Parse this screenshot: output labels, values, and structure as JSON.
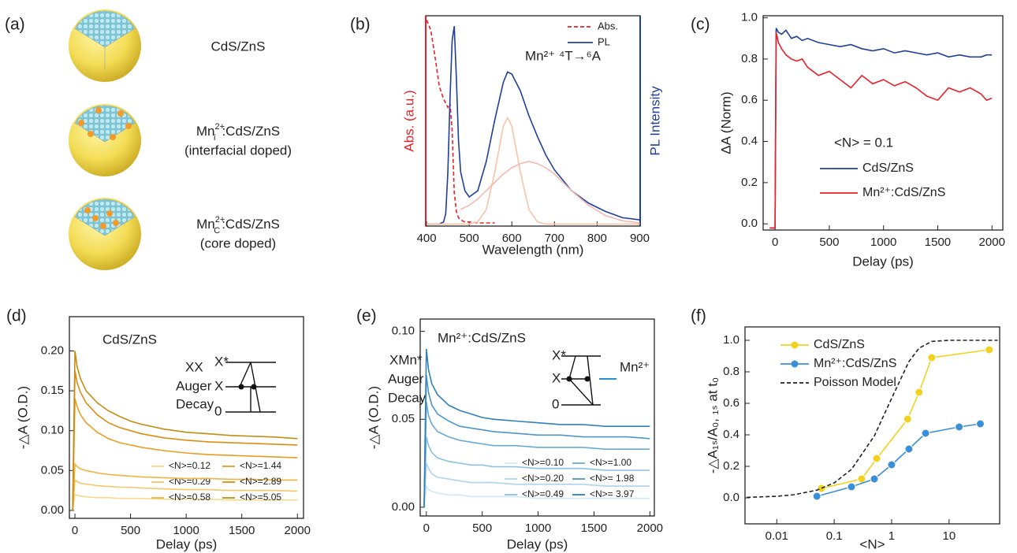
{
  "panel_a": {
    "label": "(a)",
    "items": [
      {
        "text": "CdS/ZnS"
      },
      {
        "base": "Mn",
        "sup": "2+",
        "sub": "i",
        "rest": ":CdS/ZnS",
        "note": "(interfacial doped)"
      },
      {
        "base": "Mn",
        "sup": "2+",
        "sub": "C",
        "rest": ":CdS/ZnS",
        "note": "(core doped)"
      }
    ]
  },
  "chart_data": [
    {
      "type": "line",
      "label": "(b)",
      "xlabel": "Wavelength (nm)",
      "ylabel": "Abs. (a.u.)",
      "ylabel_color": "#e8202a",
      "y2label": "PL Intensity",
      "y2label_color": "#1f3f9a",
      "annotations": [
        "Mn²⁺ ⁴T→⁶A"
      ],
      "xlim": [
        398,
        901
      ],
      "xticks": [
        400,
        500,
        600,
        700,
        800,
        900
      ],
      "ylim": [
        -0.01,
        1.0
      ],
      "y2lim": [
        -0.01,
        1.0
      ],
      "x": [
        400,
        410,
        420,
        430,
        440,
        445,
        450,
        455,
        460,
        465,
        470,
        475,
        480,
        490,
        500,
        520,
        540,
        560,
        580,
        590,
        600,
        620,
        640,
        660,
        680,
        700,
        740,
        780,
        820,
        860,
        900
      ],
      "series": [
        {
          "name": "Abs.",
          "color": "#e8202a",
          "linestyle": "dashed",
          "values": [
            0.98,
            0.93,
            0.8,
            0.66,
            0.6,
            0.58,
            0.56,
            0.58,
            0.45,
            0.15,
            0.06,
            0.03,
            0.02,
            0.01,
            0.01,
            0.005,
            0.005,
            0.005,
            null,
            null,
            null,
            null,
            null,
            null,
            null,
            null,
            null,
            null,
            null,
            null,
            null
          ]
        },
        {
          "name": "PL",
          "color": "#1f3f9a",
          "axis": "y2",
          "values": [
            0,
            0,
            0,
            0,
            0.01,
            0.05,
            0.25,
            0.6,
            0.88,
            0.95,
            0.7,
            0.4,
            0.25,
            0.16,
            0.13,
            0.16,
            0.3,
            0.5,
            0.68,
            0.73,
            0.72,
            0.64,
            0.52,
            0.42,
            0.33,
            0.26,
            0.16,
            0.1,
            0.06,
            0.03,
            0.02
          ]
        },
        {
          "color": "#f7c4a6",
          "axis": "y2",
          "values": [
            0,
            0,
            0,
            0,
            0,
            0,
            0,
            0,
            0,
            0,
            0,
            0,
            0,
            0,
            0,
            0.01,
            0.07,
            0.25,
            0.47,
            0.51,
            0.47,
            0.25,
            0.07,
            0.01,
            0,
            0,
            0,
            0,
            0,
            0,
            0
          ]
        },
        {
          "color": "#f4b8b0",
          "axis": "y2",
          "values": [
            null,
            null,
            null,
            null,
            null,
            null,
            null,
            null,
            null,
            null,
            null,
            null,
            0.07,
            0.08,
            0.09,
            0.12,
            0.16,
            0.2,
            0.24,
            0.255,
            0.27,
            0.29,
            0.3,
            0.29,
            0.27,
            0.24,
            0.16,
            0.09,
            0.04,
            0.015,
            0.005
          ]
        }
      ]
    },
    {
      "type": "line",
      "label": "(c)",
      "xlabel": "Delay (ps)",
      "ylabel": "ΔA (Norm)",
      "annotations": [
        "<N> = 0.1"
      ],
      "xlim": [
        -110,
        2100
      ],
      "xticks": [
        0,
        500,
        1000,
        1500,
        2000
      ],
      "ylim": [
        -0.03,
        1.01
      ],
      "yticks": [
        {
          "value": 0,
          "label": "0.0"
        },
        0.2,
        0.4,
        0.6,
        0.8,
        {
          "value": 1,
          "label": "1.0"
        }
      ],
      "x": [
        -50,
        0,
        10,
        30,
        60,
        100,
        150,
        200,
        250,
        300,
        400,
        500,
        600,
        700,
        800,
        900,
        1000,
        1100,
        1200,
        1300,
        1400,
        1500,
        1600,
        1700,
        1800,
        1900,
        1950,
        2000
      ],
      "series": [
        {
          "name": "CdS/ZnS",
          "color": "#1f3f9a",
          "values": [
            -0.02,
            -0.02,
            0.95,
            0.93,
            0.92,
            0.94,
            0.9,
            0.91,
            0.89,
            0.9,
            0.88,
            0.87,
            0.86,
            0.87,
            0.85,
            0.84,
            0.85,
            0.83,
            0.84,
            0.83,
            0.82,
            0.83,
            0.81,
            0.82,
            0.81,
            0.81,
            0.82,
            0.82
          ]
        },
        {
          "name": "Mn²⁺:CdS/ZnS",
          "color": "#e8202a",
          "values": [
            -0.02,
            -0.02,
            0.93,
            0.88,
            0.85,
            0.82,
            0.8,
            0.79,
            0.8,
            0.76,
            0.72,
            0.74,
            0.7,
            0.66,
            0.72,
            0.68,
            0.7,
            0.67,
            0.69,
            0.66,
            0.62,
            0.6,
            0.66,
            0.64,
            0.66,
            0.63,
            0.6,
            0.61
          ]
        }
      ]
    },
    {
      "type": "line",
      "label": "(d)",
      "title": "CdS/ZnS",
      "xlabel": "Delay (ps)",
      "ylabel": "-△A (O.D.)",
      "inset_labels": [
        "XX",
        "Auger",
        "Decay",
        "X*",
        "X",
        "0"
      ],
      "xlim": [
        -50,
        2055
      ],
      "xticks": [
        0,
        500,
        1000,
        1500,
        2000
      ],
      "ylim": [
        -0.01,
        0.243
      ],
      "yticks": [
        {
          "value": 0,
          "label": "0.00"
        },
        0.05,
        {
          "value": 0.1,
          "label": "0.10"
        },
        0.15,
        {
          "value": 0.2,
          "label": "0.20"
        }
      ],
      "x": [
        -20,
        0,
        20,
        50,
        100,
        200,
        300,
        400,
        500,
        600,
        800,
        1000,
        1200,
        1400,
        1600,
        1800,
        2000
      ],
      "series": [
        {
          "name": "<N>=0.12",
          "color": "#f5d98c",
          "values": [
            0,
            0.02,
            0.019,
            0.018,
            0.017,
            0.016,
            0.016,
            0.015,
            0.015,
            0.015,
            0.014,
            0.014,
            0.014,
            0.013,
            0.013,
            0.013,
            0.013
          ]
        },
        {
          "name": "<N>=0.29",
          "color": "#f2c766",
          "values": [
            0,
            0.038,
            0.036,
            0.034,
            0.033,
            0.031,
            0.03,
            0.029,
            0.029,
            0.028,
            0.027,
            0.026,
            0.026,
            0.025,
            0.025,
            0.025,
            0.024
          ]
        },
        {
          "name": "<N>=0.58",
          "color": "#efb443",
          "values": [
            0,
            0.058,
            0.055,
            0.052,
            0.05,
            0.047,
            0.045,
            0.044,
            0.043,
            0.042,
            0.041,
            0.04,
            0.04,
            0.039,
            0.039,
            0.038,
            0.038
          ]
        },
        {
          "name": "<N>=1.44",
          "color": "#ea9c22",
          "values": [
            0,
            0.14,
            0.13,
            0.12,
            0.11,
            0.098,
            0.09,
            0.085,
            0.082,
            0.079,
            0.075,
            0.072,
            0.07,
            0.069,
            0.068,
            0.067,
            0.066
          ]
        },
        {
          "name": "<N>=2.89",
          "color": "#dd8c12",
          "values": [
            0,
            0.175,
            0.16,
            0.148,
            0.135,
            0.12,
            0.11,
            0.104,
            0.1,
            0.096,
            0.091,
            0.088,
            0.086,
            0.085,
            0.084,
            0.083,
            0.082
          ]
        },
        {
          "name": "<N>=5.05",
          "color": "#c28e14",
          "values": [
            0,
            0.2,
            0.18,
            0.165,
            0.15,
            0.135,
            0.125,
            0.118,
            0.112,
            0.108,
            0.102,
            0.098,
            0.096,
            0.094,
            0.093,
            0.092,
            0.09
          ]
        }
      ]
    },
    {
      "type": "line",
      "label": "(e)",
      "title": "Mn²⁺:CdS/ZnS",
      "xlabel": "Delay (ps)",
      "ylabel": "-△A (O.D.)",
      "inset_labels": [
        "XMn*",
        "Auger",
        "Decay",
        "X*",
        "X",
        "0",
        "Mn²⁺"
      ],
      "xlim": [
        -55,
        2040
      ],
      "xticks": [
        0,
        500,
        1000,
        1500,
        2000
      ],
      "ylim": [
        -0.005,
        0.107
      ],
      "yticks": [
        {
          "value": 0,
          "label": "0.00"
        },
        0.05,
        {
          "value": 0.1,
          "label": "0.10"
        }
      ],
      "x": [
        -20,
        0,
        20,
        50,
        100,
        200,
        300,
        400,
        500,
        600,
        800,
        1000,
        1200,
        1400,
        1600,
        1800,
        2000
      ],
      "series": [
        {
          "name": "<N>=0.10",
          "color": "#d3e7f4",
          "values": [
            0,
            0.012,
            0.01,
            0.009,
            0.008,
            0.007,
            0.007,
            0.006,
            0.006,
            0.006,
            0.006,
            0.005,
            0.005,
            0.005,
            0.005,
            0.005,
            0.005
          ]
        },
        {
          "name": "<N>=0.20",
          "color": "#b0d4ec",
          "values": [
            0,
            0.025,
            0.022,
            0.019,
            0.017,
            0.016,
            0.015,
            0.014,
            0.014,
            0.014,
            0.013,
            0.013,
            0.013,
            0.013,
            0.012,
            0.012,
            0.012
          ]
        },
        {
          "name": "<N>=0.49",
          "color": "#8cc0e2",
          "values": [
            0,
            0.04,
            0.035,
            0.031,
            0.028,
            0.026,
            0.025,
            0.024,
            0.024,
            0.023,
            0.023,
            0.022,
            0.022,
            0.022,
            0.021,
            0.021,
            0.021
          ]
        },
        {
          "name": "<N>=1.00",
          "color": "#67a9d6",
          "values": [
            0,
            0.06,
            0.052,
            0.047,
            0.043,
            0.04,
            0.038,
            0.037,
            0.036,
            0.035,
            0.035,
            0.034,
            0.034,
            0.034,
            0.033,
            0.033,
            0.033
          ]
        },
        {
          "name": "<N>= 1.98",
          "color": "#4c96c9",
          "values": [
            0,
            0.075,
            0.065,
            0.058,
            0.053,
            0.049,
            0.046,
            0.045,
            0.044,
            0.043,
            0.042,
            0.041,
            0.041,
            0.04,
            0.04,
            0.04,
            0.039
          ]
        },
        {
          "name": "<N>= 3.97",
          "color": "#3080b9",
          "values": [
            0,
            0.09,
            0.078,
            0.07,
            0.064,
            0.058,
            0.055,
            0.053,
            0.051,
            0.05,
            0.049,
            0.048,
            0.047,
            0.047,
            0.046,
            0.046,
            0.046
          ]
        }
      ]
    },
    {
      "type": "line",
      "label": "(f)",
      "xlabel": "<N>",
      "ylabel": "-△A₁ₛ/A₀, ₁ₛ at t₀",
      "xscale": "log",
      "xlim": [
        0.0028,
        76
      ],
      "xticks": [
        0.01,
        0.1,
        1,
        10
      ],
      "ylim": [
        -0.165,
        1.085
      ],
      "yticks": [
        {
          "value": 0,
          "label": "0.0"
        },
        0.2,
        0.4,
        0.6,
        0.8,
        {
          "value": 1,
          "label": "1.0"
        }
      ],
      "series": [
        {
          "name": "CdS/ZnS",
          "color": "#f2d21e",
          "markers": true,
          "x": [
            0.06,
            0.3,
            0.55,
            1.9,
            3,
            5,
            50
          ],
          "values": [
            0.06,
            0.12,
            0.25,
            0.5,
            0.67,
            0.89,
            0.94
          ]
        },
        {
          "name": "Mn²⁺:CdS/ZnS",
          "color": "#3b8fd6",
          "markers": true,
          "x": [
            0.05,
            0.2,
            0.5,
            1.0,
            2.0,
            3.9,
            15,
            35
          ],
          "values": [
            0.01,
            0.07,
            0.12,
            0.21,
            0.31,
            0.41,
            0.45,
            0.47
          ]
        },
        {
          "name": "Poisson Model",
          "color": "#222222",
          "linestyle": "dashed",
          "x": [
            0.003,
            0.01,
            0.02,
            0.05,
            0.1,
            0.2,
            0.5,
            1,
            2,
            3,
            5,
            10,
            20,
            50,
            70
          ],
          "values": [
            0.003,
            0.01,
            0.02,
            0.049,
            0.095,
            0.181,
            0.393,
            0.632,
            0.865,
            0.95,
            0.993,
            1,
            1,
            1,
            1
          ]
        }
      ]
    }
  ]
}
